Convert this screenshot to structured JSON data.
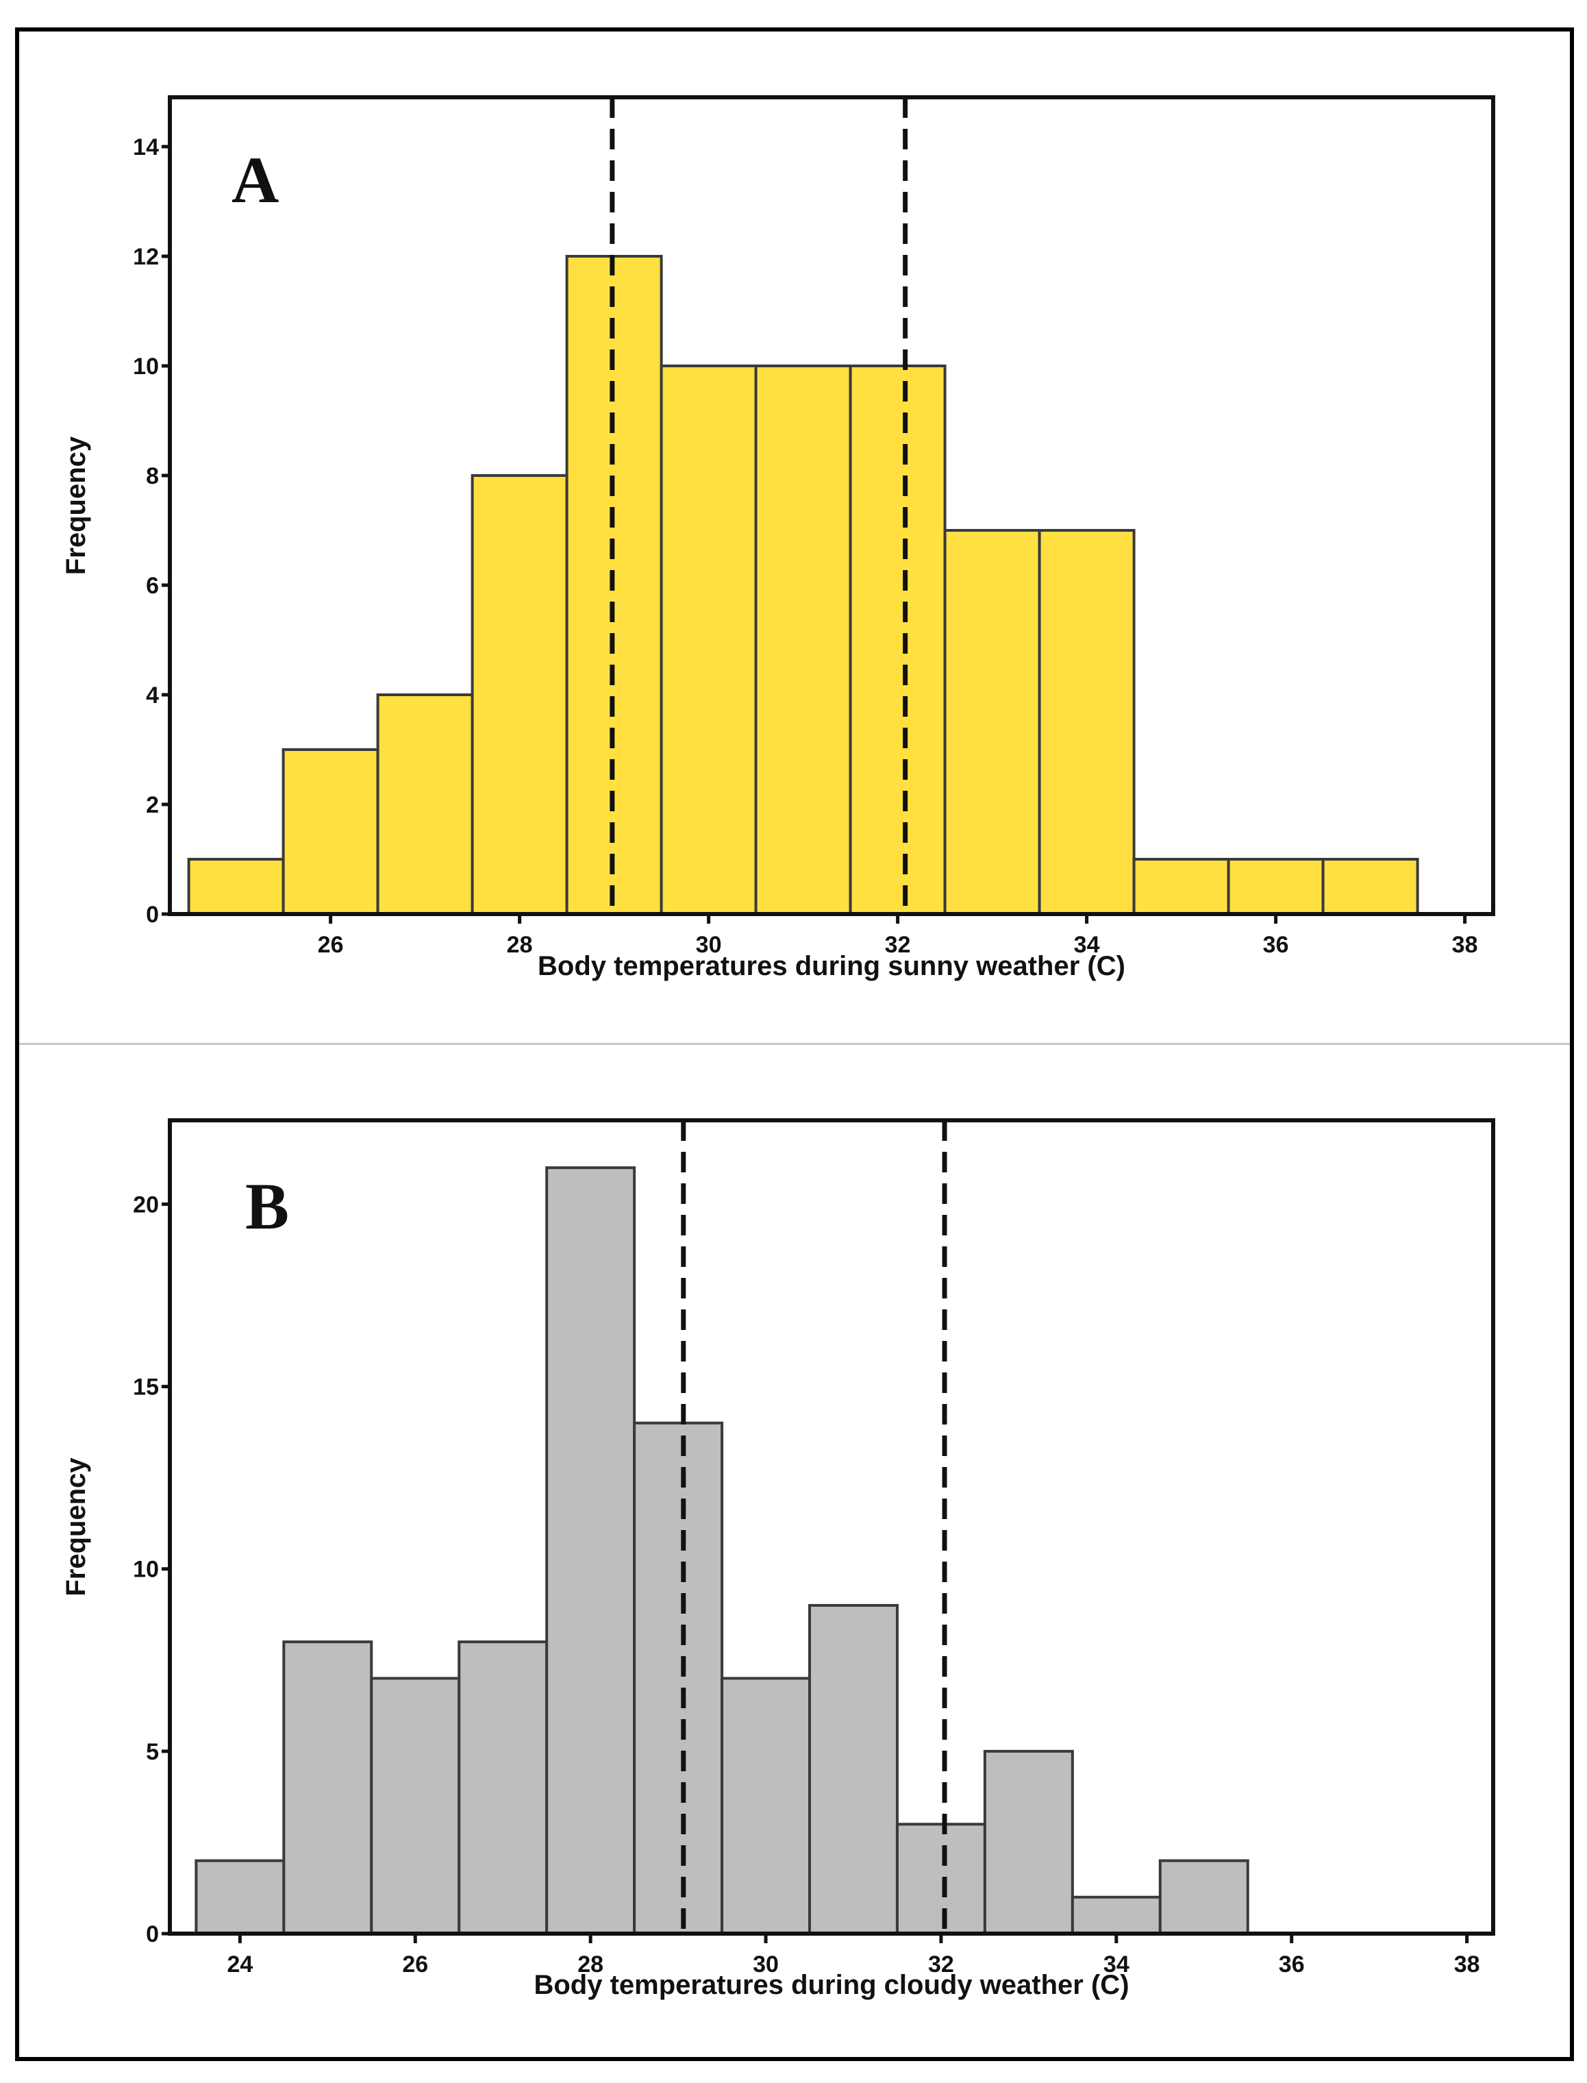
{
  "chart_data": [
    {
      "type": "bar",
      "panel_label": "A",
      "title": "",
      "xlabel": "Body temperatures during sunny weather (C)",
      "ylabel": "Frequency",
      "bin_width": 1,
      "x": [
        25,
        26,
        27,
        28,
        29,
        30,
        31,
        32,
        33,
        34,
        35,
        36,
        37
      ],
      "values": [
        1,
        3,
        4,
        8,
        12,
        10,
        10,
        10,
        7,
        7,
        1,
        1,
        1
      ],
      "xlim": [
        24.3,
        38.3
      ],
      "ylim": [
        0,
        14.9
      ],
      "xticks": [
        26,
        28,
        30,
        32,
        34,
        36,
        38
      ],
      "yticks": [
        0,
        2,
        4,
        6,
        8,
        10,
        12,
        14
      ],
      "reference_lines": [
        28.98,
        32.08
      ],
      "bar_color": "#FFE040",
      "grid": false
    },
    {
      "type": "bar",
      "panel_label": "B",
      "title": "",
      "xlabel": "Body temperatures during cloudy weather (C)",
      "ylabel": "Frequency",
      "bin_width": 1,
      "x": [
        24,
        25,
        26,
        27,
        28,
        29,
        30,
        31,
        32,
        33,
        34,
        35
      ],
      "values": [
        2,
        8,
        7,
        8,
        21,
        14,
        7,
        9,
        3,
        5,
        1,
        2
      ],
      "xlim": [
        23.2,
        38.3
      ],
      "ylim": [
        0,
        22.3
      ],
      "xticks": [
        24,
        26,
        28,
        30,
        32,
        34,
        36,
        38
      ],
      "yticks": [
        0,
        5,
        10,
        15,
        20
      ],
      "reference_lines": [
        29.06,
        32.04
      ],
      "bar_color": "#BEBEBE",
      "grid": false
    }
  ]
}
